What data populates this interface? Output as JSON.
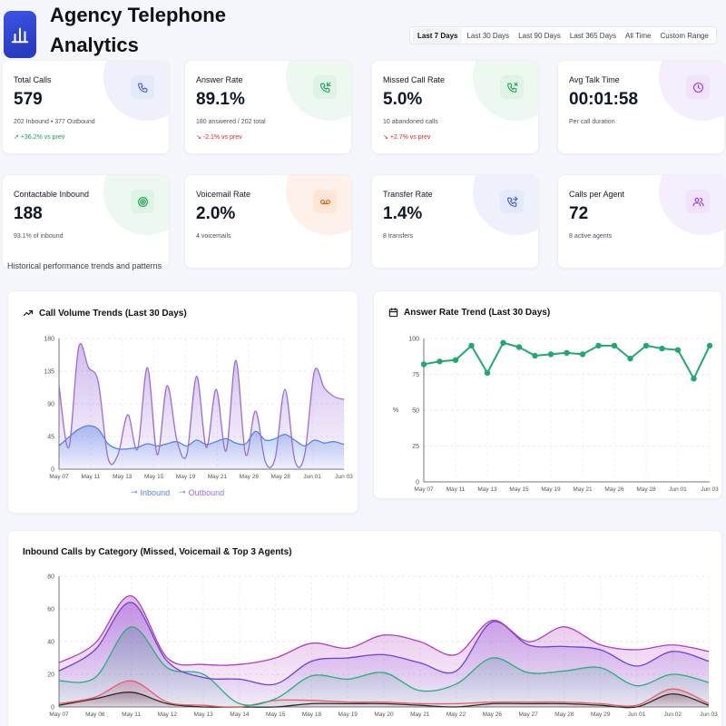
{
  "header": {
    "title_line1": "Agency Telephone",
    "title_line2": "Analytics",
    "ranges": [
      "Last 7 Days",
      "Last 30 Days",
      "Last 90 Days",
      "Last 365 Days",
      "All Time",
      "Custom Range"
    ],
    "active_range": "Last 7 Days"
  },
  "kpis": [
    {
      "label": "Total Calls",
      "value": "579",
      "sub": "202 Inbound • 377 Outbound",
      "trend": "+36.2% vs prev",
      "trend_dir": "up",
      "icon": "phone-icon",
      "color": "#3b5bdb",
      "blob": "#eef0fb",
      "box": "#e4e9fb"
    },
    {
      "label": "Answer Rate",
      "value": "89.1%",
      "sub": "180 answered / 202 total",
      "trend": "-2.1% vs prev",
      "trend_dir": "down",
      "icon": "phone-incoming-icon",
      "color": "#16a34a",
      "blob": "#ecf8f0",
      "box": "#dff3e6"
    },
    {
      "label": "Missed Call Rate",
      "value": "5.0%",
      "sub": "10 abandoned calls",
      "trend": "+2.7% vs prev",
      "trend_dir": "down",
      "icon": "phone-missed-icon",
      "color": "#16a34a",
      "blob": "#ecf8f0",
      "box": "#dff3e6"
    },
    {
      "label": "Avg Talk Time",
      "value": "00:01:58",
      "sub": "Per call duration",
      "trend": "",
      "trend_dir": "",
      "icon": "clock-icon",
      "color": "#9333ea",
      "blob": "#f5eefc",
      "box": "#efe4fb"
    },
    {
      "label": "Contactable Inbound",
      "value": "188",
      "sub": "93.1% of inbound",
      "trend": "",
      "trend_dir": "",
      "icon": "target-icon",
      "color": "#16a34a",
      "blob": "#ecf8f0",
      "box": "#dff3e6"
    },
    {
      "label": "Voicemail Rate",
      "value": "2.0%",
      "sub": "4 voicemails",
      "trend": "",
      "trend_dir": "",
      "icon": "voicemail-icon",
      "color": "#ea580c",
      "blob": "#fdf1e9",
      "box": "#fde6d6"
    },
    {
      "label": "Transfer Rate",
      "value": "1.4%",
      "sub": "8 transfers",
      "trend": "",
      "trend_dir": "",
      "icon": "phone-forward-icon",
      "color": "#3b5bdb",
      "blob": "#eef0fb",
      "box": "#e4e9fb"
    },
    {
      "label": "Calls per Agent",
      "value": "72",
      "sub": "8 active agents",
      "trend": "",
      "trend_dir": "",
      "icon": "users-icon",
      "color": "#9333ea",
      "blob": "#f5eefc",
      "box": "#efe4fb"
    }
  ],
  "section_subtitle": "Historical performance trends and patterns",
  "chart_data": [
    {
      "type": "area",
      "title": "Call Volume Trends (Last 30 Days)",
      "x_ticks": [
        "May 07",
        "May 11",
        "May 13",
        "May 15",
        "May 19",
        "May 21",
        "May 26",
        "May 28",
        "Jun 01",
        "Jun 03"
      ],
      "ylim": [
        0,
        180
      ],
      "y_ticks": [
        0,
        45,
        90,
        135,
        180
      ],
      "series": [
        {
          "name": "Inbound",
          "color": "#4a86e8",
          "values": [
            32,
            44,
            55,
            60,
            55,
            35,
            28,
            28,
            30,
            35,
            32,
            35,
            38,
            32,
            40,
            34,
            38,
            42,
            36,
            35,
            52,
            40,
            42,
            48,
            40,
            32,
            40,
            36,
            38,
            34
          ]
        },
        {
          "name": "Outbound",
          "color": "#9b6bd8",
          "values": [
            115,
            30,
            168,
            140,
            120,
            15,
            20,
            75,
            28,
            140,
            20,
            115,
            40,
            20,
            128,
            30,
            110,
            25,
            150,
            20,
            80,
            10,
            15,
            110,
            12,
            20,
            135,
            112,
            100,
            96
          ]
        }
      ]
    },
    {
      "type": "line",
      "title": "Answer Rate Trend (Last 30 Days)",
      "ylabel": "%",
      "x_ticks": [
        "May 07",
        "May 11",
        "May 13",
        "May 15",
        "May 19",
        "May 21",
        "May 26",
        "May 28",
        "Jun 01",
        "Jun 03"
      ],
      "ylim": [
        0,
        100
      ],
      "y_ticks": [
        0,
        25,
        50,
        75,
        100
      ],
      "series": [
        {
          "name": "",
          "color": "#1fa971",
          "values": [
            82,
            84,
            85,
            95,
            76,
            97,
            94,
            88,
            89,
            90,
            89,
            95,
            95,
            86,
            95,
            93,
            92,
            72,
            95
          ]
        }
      ]
    },
    {
      "type": "area",
      "title": "Inbound Calls by Category (Missed, Voicemail & Top 3 Agents)",
      "x_ticks": [
        "May 07",
        "May 08",
        "May 11",
        "May 12",
        "May 13",
        "May 14",
        "May 15",
        "May 18",
        "May 19",
        "May 20",
        "May 21",
        "May 22",
        "May 26",
        "May 27",
        "May 28",
        "May 29",
        "Jun 01",
        "Jun 02",
        "Jun 03"
      ],
      "ylim": [
        0,
        80
      ],
      "y_ticks": [
        0,
        20,
        40,
        60,
        80
      ],
      "series": [
        {
          "name": "",
          "color": "#2a2a2a",
          "values": [
            1,
            5,
            9,
            2,
            0,
            0,
            0,
            2,
            2,
            2,
            1,
            0,
            2,
            2,
            2,
            1,
            0,
            8,
            1
          ]
        },
        {
          "name": "",
          "color": "#e85d5d",
          "values": [
            2,
            6,
            16,
            3,
            1,
            0,
            4,
            4,
            3,
            3,
            2,
            2,
            3,
            3,
            3,
            2,
            1,
            11,
            2
          ]
        },
        {
          "name": "",
          "color": "#22b07a",
          "values": [
            16,
            18,
            49,
            24,
            20,
            2,
            5,
            19,
            17,
            21,
            10,
            14,
            30,
            21,
            22,
            24,
            13,
            20,
            15
          ]
        },
        {
          "name": "",
          "color": "#6d3fd8",
          "values": [
            22,
            35,
            64,
            28,
            18,
            17,
            14,
            28,
            30,
            32,
            27,
            22,
            52,
            38,
            37,
            35,
            25,
            34,
            28
          ]
        },
        {
          "name": "",
          "color": "#b13cc0",
          "values": [
            27,
            39,
            68,
            30,
            26,
            26,
            30,
            39,
            36,
            44,
            40,
            32,
            53,
            40,
            49,
            38,
            35,
            38,
            34
          ]
        }
      ]
    }
  ]
}
